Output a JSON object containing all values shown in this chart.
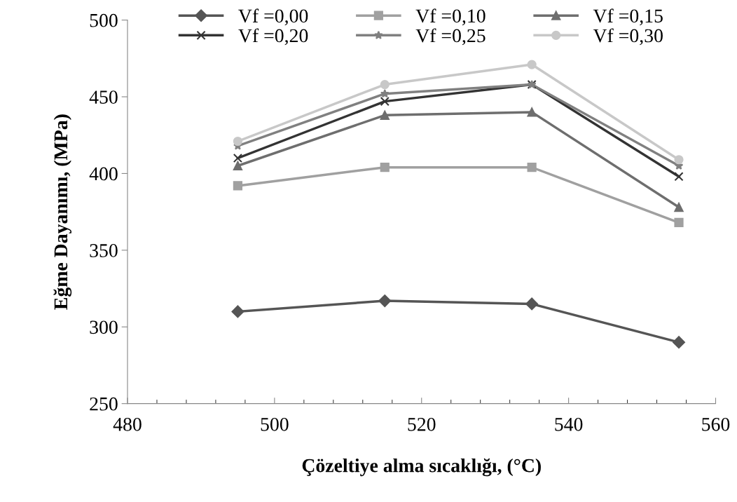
{
  "chart_data": {
    "type": "line",
    "xlabel": "Çözeltiye alma sıcaklığı, (°C)",
    "ylabel": "Eğme Dayanımı, (MPa)",
    "x": [
      495,
      515,
      535,
      555
    ],
    "series": [
      {
        "name": "Vf =0,00",
        "color": "#555555",
        "marker": "diamond",
        "values": [
          310,
          317,
          315,
          290
        ]
      },
      {
        "name": "Vf =0,10",
        "color": "#a0a0a0",
        "marker": "square",
        "values": [
          392,
          404,
          404,
          368
        ]
      },
      {
        "name": "Vf =0,15",
        "color": "#6e6e6e",
        "marker": "triangle",
        "values": [
          405,
          438,
          440,
          378
        ]
      },
      {
        "name": "Vf =0,20",
        "color": "#333333",
        "marker": "cross",
        "values": [
          410,
          447,
          458,
          398
        ]
      },
      {
        "name": "Vf =0,25",
        "color": "#808080",
        "marker": "star",
        "values": [
          418,
          452,
          458,
          405
        ]
      },
      {
        "name": "Vf =0,30",
        "color": "#c8c8c8",
        "marker": "circle",
        "values": [
          421,
          458,
          471,
          409
        ]
      }
    ],
    "xlim": [
      480,
      560
    ],
    "xticks": [
      480,
      500,
      520,
      540,
      560
    ],
    "ylim": [
      250,
      500
    ],
    "yticks": [
      250,
      300,
      350,
      400,
      450,
      500
    ],
    "grid": false,
    "legend": "top"
  }
}
